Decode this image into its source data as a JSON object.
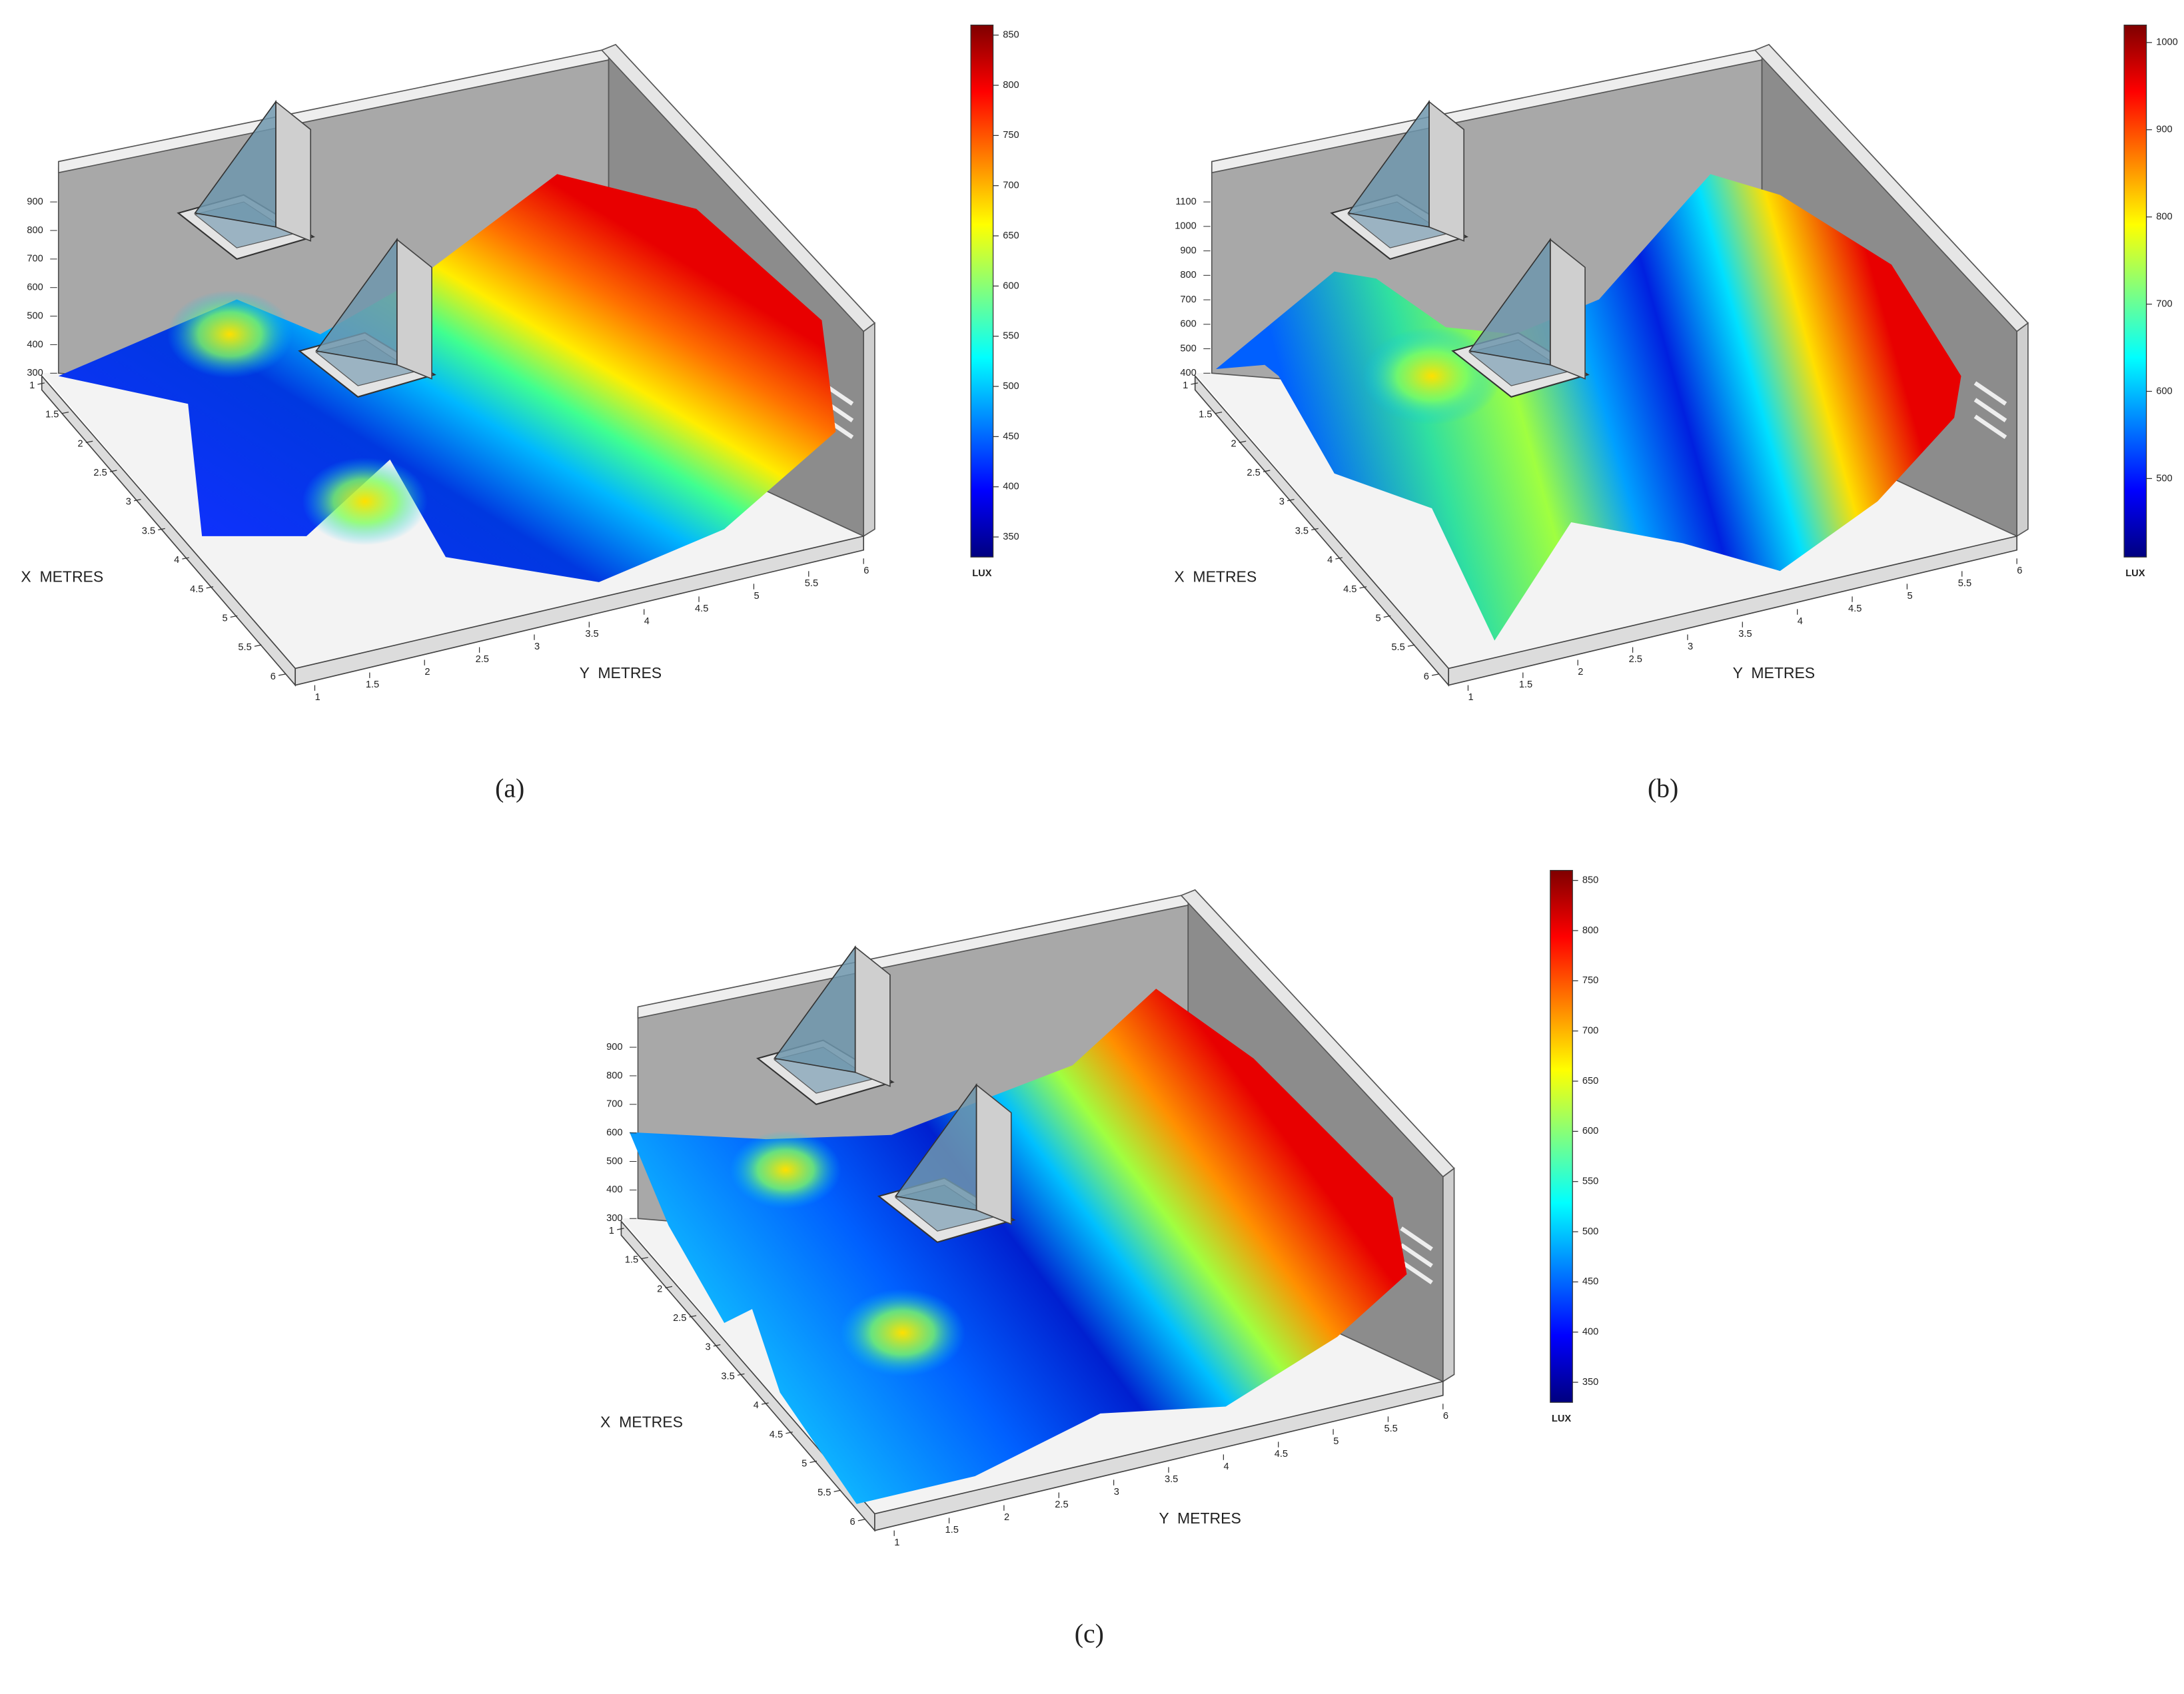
{
  "chart_data": [
    {
      "type": "surface",
      "panel_label": "(a)",
      "x_label": "X  METRES",
      "y_label": "Y  METRES",
      "colorbar_label": "LUX",
      "xlim": [
        1,
        6
      ],
      "xticks": [
        1,
        1.5,
        2,
        2.5,
        3,
        3.5,
        4,
        4.5,
        5,
        5.5,
        6
      ],
      "ylim": [
        1,
        6
      ],
      "yticks": [
        1,
        1.5,
        2,
        2.5,
        3,
        3.5,
        4,
        4.5,
        5,
        5.5,
        6
      ],
      "zlim": [
        300,
        900
      ],
      "zticks": [
        900,
        800,
        700,
        600,
        500,
        400,
        300
      ],
      "clim": [
        330,
        860
      ],
      "cticks": [
        850,
        800,
        750,
        700,
        650,
        600,
        550,
        500,
        450,
        400,
        350
      ]
    },
    {
      "type": "surface",
      "panel_label": "(b)",
      "x_label": "X  METRES",
      "y_label": "Y  METRES",
      "colorbar_label": "LUX",
      "xlim": [
        1,
        6
      ],
      "xticks": [
        1,
        1.5,
        2,
        2.5,
        3,
        3.5,
        4,
        4.5,
        5,
        5.5,
        6
      ],
      "ylim": [
        1,
        6
      ],
      "yticks": [
        1,
        1.5,
        2,
        2.5,
        3,
        3.5,
        4,
        4.5,
        5,
        5.5,
        6
      ],
      "zlim": [
        400,
        1100
      ],
      "zticks": [
        1100,
        1000,
        900,
        800,
        700,
        600,
        500,
        400
      ],
      "clim": [
        410,
        1020
      ],
      "cticks": [
        1000,
        900,
        800,
        700,
        600,
        500
      ]
    },
    {
      "type": "surface",
      "panel_label": "(c)",
      "x_label": "X  METRES",
      "y_label": "Y  METRES",
      "colorbar_label": "LUX",
      "xlim": [
        1,
        6
      ],
      "xticks": [
        1,
        1.5,
        2,
        2.5,
        3,
        3.5,
        4,
        4.5,
        5,
        5.5,
        6
      ],
      "ylim": [
        1,
        6
      ],
      "yticks": [
        1,
        1.5,
        2,
        2.5,
        3,
        3.5,
        4,
        4.5,
        5,
        5.5,
        6
      ],
      "zlim": [
        300,
        900
      ],
      "zticks": [
        900,
        800,
        700,
        600,
        500,
        400,
        300
      ],
      "clim": [
        330,
        860
      ],
      "cticks": [
        850,
        800,
        750,
        700,
        650,
        600,
        550,
        500,
        450,
        400,
        350
      ]
    }
  ]
}
